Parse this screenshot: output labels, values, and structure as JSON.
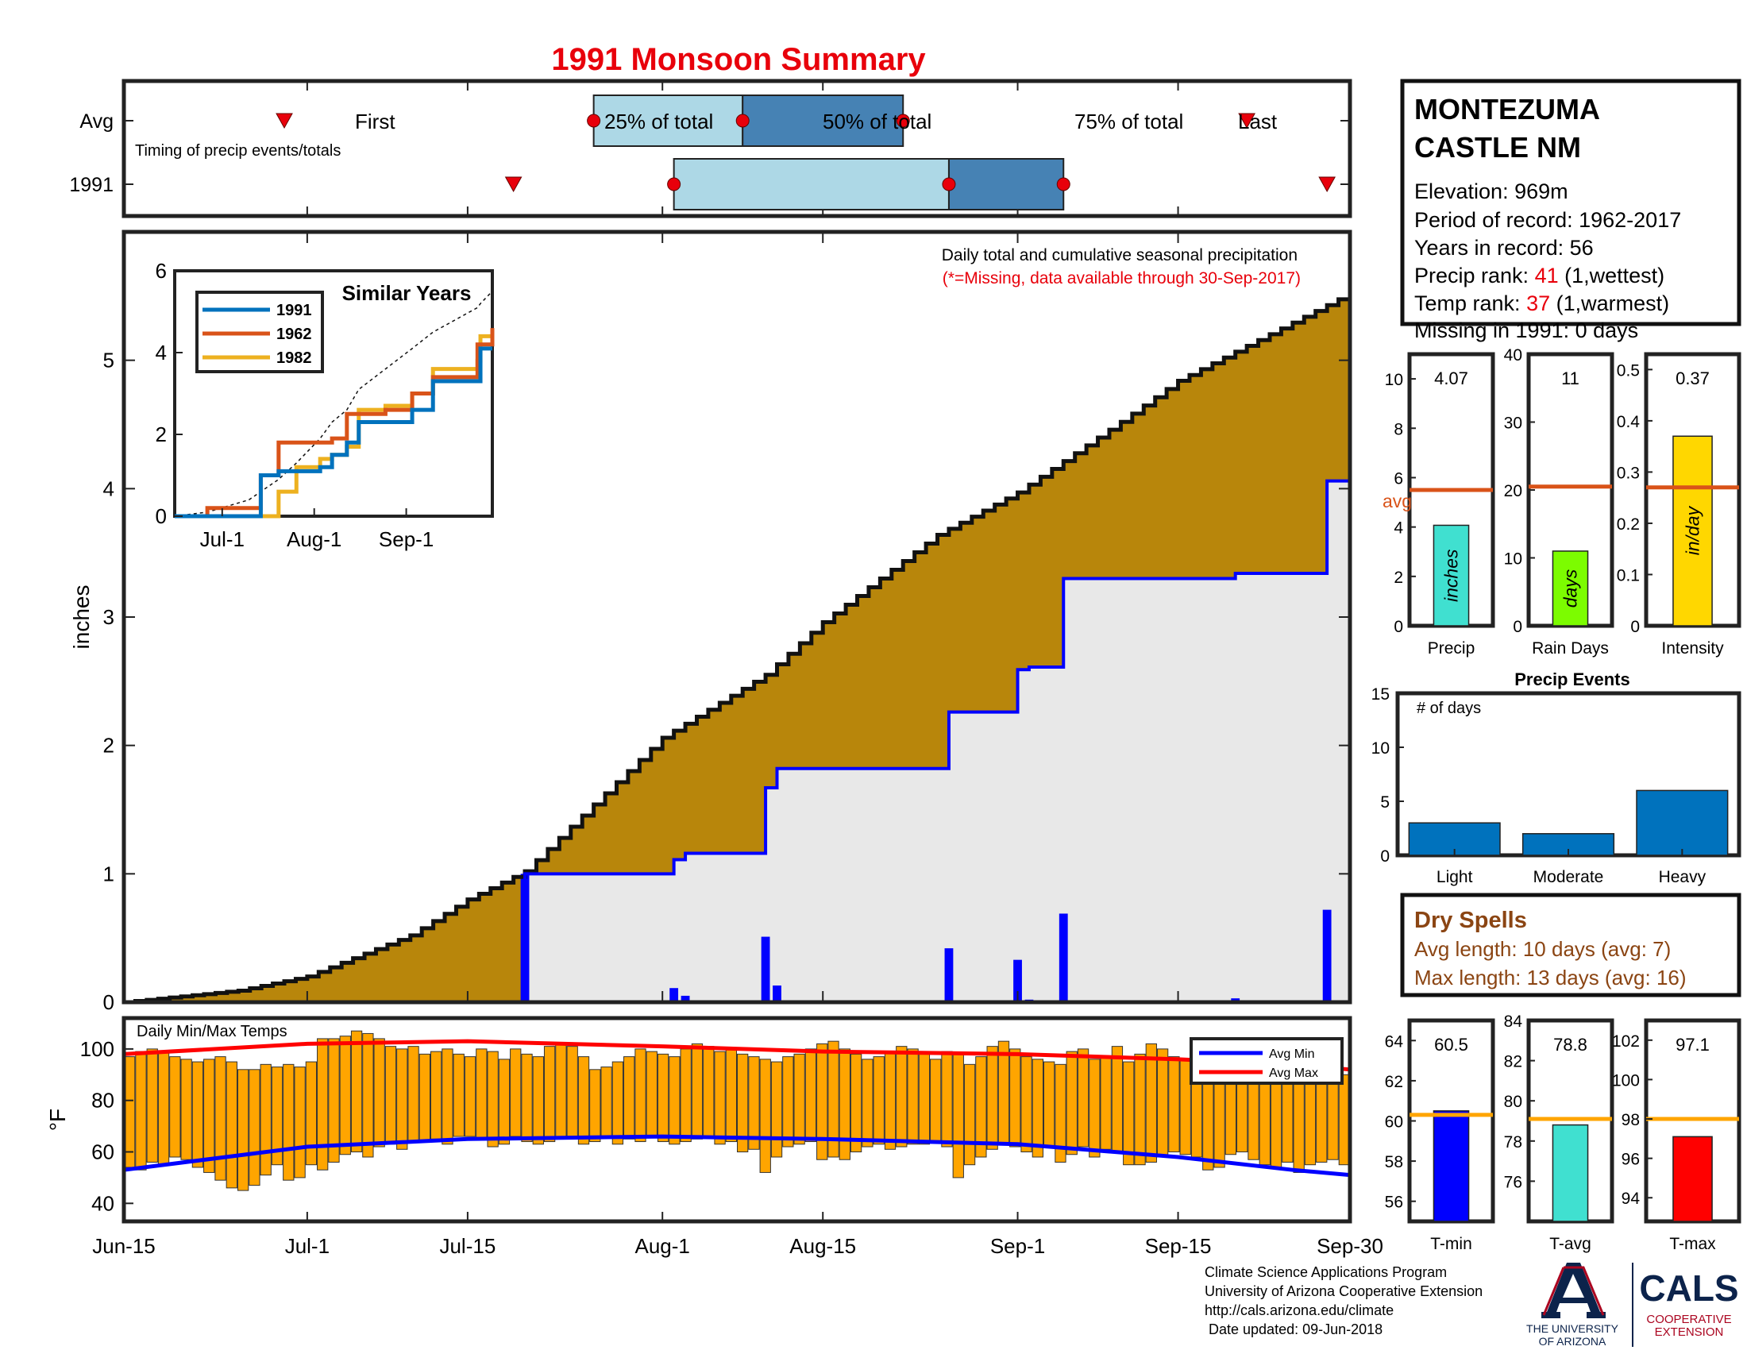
{
  "title": "1991 Monsoon Summary",
  "timing": {
    "row_labels": [
      "Avg",
      "1991"
    ],
    "subtitle": "Timing of precip events/totals",
    "avg_labels": {
      "first": "First",
      "p25": "25% of total",
      "p50": "50% of total",
      "p75": "75% of total",
      "last": "Last"
    },
    "avg": {
      "first": "2017-06-29",
      "p25": "2017-07-26",
      "p50": "2017-08-08",
      "p75": "2017-08-22",
      "last": "2017-09-21"
    },
    "year": {
      "first": "2017-07-19",
      "p25": "2017-08-02",
      "p50": "2017-08-26",
      "p75": "2017-09-05",
      "last": "2017-09-28"
    },
    "colors": {
      "p25_box": "#add8e6",
      "p50_box": "#4682b4",
      "marker": "#e8000b"
    }
  },
  "station": {
    "name_line1": "MONTEZUMA",
    "name_line2": "CASTLE NM",
    "elevation": "Elevation: 969m",
    "period": "Period of record: 1962-2017",
    "years": "Years in record: 56",
    "precip_rank_label": "Precip rank: ",
    "precip_rank_value": "41",
    "precip_rank_note": " (1,wettest)",
    "temp_rank_label": "Temp rank: ",
    "temp_rank_value": "37",
    "temp_rank_note": " (1,warmest)",
    "missing": "Missing in 1991: 0 days",
    "rank_color": "#e8000b"
  },
  "main_plot": {
    "note1": "Daily total and cumulative seasonal precipitation",
    "note2": "(*=Missing, data available through 30-Sep-2017)",
    "ylabel": "inches",
    "yticks": [
      0,
      1,
      2,
      3,
      4,
      5
    ],
    "xticks": [
      "Jun-15",
      "Jul-1",
      "Jul-15",
      "Aug-1",
      "Aug-15",
      "Sep-1",
      "Sep-15",
      "Sep-30"
    ]
  },
  "inset": {
    "title": "Similar Years",
    "xticks": [
      "Jul-1",
      "Aug-1",
      "Sep-1"
    ],
    "yticks": [
      0,
      2,
      4,
      6
    ],
    "series_names": [
      "1991",
      "1962",
      "1982"
    ],
    "series_colors": [
      "#0072bd",
      "#d95319",
      "#edb120"
    ]
  },
  "temp_plot": {
    "title": "Daily Min/Max Temps",
    "ylabel": "°F",
    "yticks": [
      40,
      60,
      80,
      100
    ],
    "legend": [
      "Avg Min",
      "Avg Max"
    ]
  },
  "stats": {
    "precip": {
      "label": "Precip",
      "value_text": "4.07",
      "unit": "inches",
      "avg_label": "avg",
      "yticks": [
        0,
        2,
        4,
        6,
        8,
        10
      ]
    },
    "rain_days": {
      "label": "Rain Days",
      "value_text": "11",
      "unit": "days",
      "yticks": [
        0,
        10,
        20,
        30,
        40
      ]
    },
    "intensity": {
      "label": "Intensity",
      "value_text": "0.37",
      "unit": "in/day",
      "yticks": [
        0,
        0.1,
        0.2,
        0.3,
        0.4,
        0.5
      ]
    }
  },
  "events": {
    "title": "Precip Events",
    "ylabel": "# of days",
    "yticks": [
      0,
      5,
      10,
      15
    ]
  },
  "dry_spells": {
    "title": "Dry Spells",
    "avg_length": "Avg length: 10 days (avg: 7)",
    "max_length": "Max length: 13 days (avg: 16)",
    "color": "#8b4513"
  },
  "temp_stats": {
    "tmin": {
      "label": "T-min",
      "value_text": "60.5",
      "yticks": [
        56,
        58,
        60,
        62,
        64
      ]
    },
    "tavg": {
      "label": "T-avg",
      "value_text": "78.8",
      "yticks": [
        76,
        78,
        80,
        82,
        84
      ]
    },
    "tmax": {
      "label": "T-max",
      "value_text": "97.1",
      "yticks": [
        94,
        96,
        98,
        100,
        102
      ]
    }
  },
  "footer": {
    "line1": "Climate Science Applications Program",
    "line2": "University of Arizona Cooperative Extension",
    "line3": "http://cals.arizona.edu/climate",
    "line4": " Date updated: 09-Jun-2018",
    "logo_ua_line1": "THE UNIVERSITY",
    "logo_ua_line2": "OF ARIZONA",
    "logo_cals": "CALS",
    "logo_coop1": "COOPERATIVE",
    "logo_coop2": "EXTENSION"
  },
  "chart_data": [
    {
      "name": "cumulative_precipitation",
      "type": "area",
      "x_dates": [
        "2017-06-15",
        "2017-06-25",
        "2017-07-01",
        "2017-07-10",
        "2017-07-15",
        "2017-07-20",
        "2017-08-01",
        "2017-08-10",
        "2017-08-15",
        "2017-08-25",
        "2017-09-01",
        "2017-09-10",
        "2017-09-15",
        "2017-09-30"
      ],
      "avg_cumulative_in": [
        0.0,
        0.09,
        0.2,
        0.52,
        0.8,
        1.02,
        2.06,
        2.55,
        2.96,
        3.64,
        3.97,
        4.52,
        4.84,
        5.52
      ],
      "year_cumulative_steps": [
        {
          "date": "2017-06-15",
          "value": 0.0
        },
        {
          "date": "2017-07-20",
          "value": 1.0
        },
        {
          "date": "2017-08-02",
          "value": 1.11
        },
        {
          "date": "2017-08-03",
          "value": 1.16
        },
        {
          "date": "2017-08-10",
          "value": 1.67
        },
        {
          "date": "2017-08-11",
          "value": 1.82
        },
        {
          "date": "2017-08-26",
          "value": 2.26
        },
        {
          "date": "2017-09-01",
          "value": 2.59
        },
        {
          "date": "2017-09-02",
          "value": 2.61
        },
        {
          "date": "2017-09-05",
          "value": 3.3
        },
        {
          "date": "2017-09-20",
          "value": 3.34
        },
        {
          "date": "2017-09-28",
          "value": 4.06
        }
      ],
      "daily_precip": [
        {
          "date": "2017-07-20",
          "value": 1.0
        },
        {
          "date": "2017-08-02",
          "value": 0.11
        },
        {
          "date": "2017-08-03",
          "value": 0.05
        },
        {
          "date": "2017-08-10",
          "value": 0.51
        },
        {
          "date": "2017-08-11",
          "value": 0.13
        },
        {
          "date": "2017-08-26",
          "value": 0.42
        },
        {
          "date": "2017-09-01",
          "value": 0.33
        },
        {
          "date": "2017-09-02",
          "value": 0.02
        },
        {
          "date": "2017-09-05",
          "value": 0.69
        },
        {
          "date": "2017-09-20",
          "value": 0.03
        },
        {
          "date": "2017-09-28",
          "value": 0.72
        }
      ],
      "ylim": [
        0,
        6
      ],
      "colors": {
        "avg_fill": "#b8860b",
        "year_fill": "#e8e8e8",
        "year_line": "#0000ff",
        "daily_bar": "#0000ff"
      }
    },
    {
      "name": "similar_years",
      "type": "line",
      "x_dates": [
        "2017-06-15",
        "2017-06-26",
        "2017-07-10",
        "2017-07-14",
        "2017-07-20",
        "2017-07-26",
        "2017-08-03",
        "2017-08-07",
        "2017-08-12",
        "2017-08-16",
        "2017-08-25",
        "2017-09-03",
        "2017-09-10",
        "2017-09-25",
        "2017-09-26",
        "2017-09-30"
      ],
      "series": [
        {
          "name": "1991",
          "values": [
            0.0,
            0.0,
            0.0,
            1.0,
            1.1,
            1.1,
            1.2,
            1.5,
            1.8,
            2.3,
            2.3,
            2.6,
            3.3,
            3.3,
            4.1,
            4.1
          ]
        },
        {
          "name": "1962",
          "values": [
            0.0,
            0.2,
            0.2,
            1.0,
            1.8,
            1.8,
            1.8,
            1.9,
            2.5,
            2.5,
            2.6,
            3.0,
            3.4,
            4.2,
            4.2,
            4.6
          ]
        },
        {
          "name": "1982",
          "values": [
            0.0,
            0.0,
            0.0,
            0.0,
            0.6,
            1.2,
            1.4,
            1.5,
            1.7,
            2.6,
            2.7,
            3.0,
            3.6,
            3.8,
            4.4,
            4.4
          ]
        }
      ],
      "avg_dashed_values": [
        0.0,
        0.1,
        0.4,
        0.6,
        0.9,
        1.3,
        1.9,
        2.3,
        2.6,
        3.1,
        3.6,
        4.1,
        4.5,
        5.1,
        5.2,
        5.5
      ],
      "ylim": [
        0,
        6
      ]
    },
    {
      "name": "daily_temps",
      "type": "bar",
      "date_range": [
        "2017-06-15",
        "2017-09-30"
      ],
      "tmax_f": [
        97,
        99,
        100,
        99,
        97,
        96,
        95,
        96,
        97,
        95,
        92,
        92,
        94,
        93,
        94,
        93,
        95,
        104,
        104,
        105,
        107,
        106,
        104,
        101,
        100,
        101,
        98,
        99,
        100,
        98,
        97,
        100,
        99,
        96,
        100,
        98,
        97,
        101,
        102,
        101,
        97,
        92,
        93,
        95,
        97,
        100,
        99,
        98,
        97,
        100,
        102,
        101,
        99,
        100,
        98,
        97,
        96,
        95,
        97,
        98,
        100,
        102,
        103,
        100,
        98,
        96,
        97,
        99,
        101,
        100,
        98,
        96,
        99,
        98,
        94,
        97,
        101,
        103,
        100,
        97,
        96,
        95,
        94,
        99,
        100,
        96,
        97,
        101,
        95,
        98,
        102,
        100,
        97,
        96,
        93,
        96,
        99,
        97,
        95,
        94,
        96,
        93,
        94,
        97,
        95,
        92,
        91,
        90
      ],
      "tmin_f": [
        54,
        53,
        56,
        55,
        58,
        57,
        54,
        52,
        49,
        46,
        45,
        47,
        51,
        55,
        49,
        50,
        55,
        53,
        56,
        59,
        60,
        58,
        62,
        63,
        61,
        64,
        64,
        65,
        63,
        66,
        66,
        65,
        62,
        63,
        66,
        64,
        63,
        64,
        65,
        66,
        63,
        64,
        66,
        63,
        65,
        64,
        66,
        64,
        63,
        64,
        65,
        66,
        63,
        64,
        60,
        61,
        52,
        58,
        62,
        63,
        64,
        57,
        58,
        57,
        60,
        62,
        63,
        61,
        62,
        63,
        63,
        64,
        62,
        50,
        55,
        58,
        61,
        63,
        62,
        60,
        58,
        62,
        56,
        59,
        62,
        58,
        61,
        60,
        55,
        55,
        56,
        58,
        60,
        59,
        58,
        53,
        54,
        59,
        60,
        57,
        55,
        54,
        56,
        52,
        55,
        56,
        57,
        55
      ],
      "avg_min_f": [
        53,
        62,
        65,
        66,
        65,
        63,
        58,
        53,
        51
      ],
      "avg_max_f": [
        98,
        102,
        103,
        101,
        99,
        98,
        96,
        94,
        92
      ],
      "avg_dates": [
        "2017-06-15",
        "2017-07-01",
        "2017-07-15",
        "2017-08-01",
        "2017-08-15",
        "2017-09-01",
        "2017-09-15",
        "2017-09-25",
        "2017-09-30"
      ],
      "ylim": [
        33,
        112
      ],
      "colors": {
        "bar": "#ffa500",
        "avg_min": "#0000ff",
        "avg_max": "#ff0000"
      }
    },
    {
      "name": "season_stats",
      "type": "bar",
      "categories": [
        "Precip",
        "Rain Days",
        "Intensity"
      ],
      "values": [
        4.07,
        11,
        0.37
      ],
      "averages": [
        5.5,
        20.5,
        0.27
      ],
      "ylims": [
        [
          0,
          11
        ],
        [
          0,
          40
        ],
        [
          0,
          0.53
        ]
      ],
      "colors": [
        "#40e0d0",
        "#7cfc00",
        "#ffd700"
      ],
      "avg_color": "#d95319"
    },
    {
      "name": "precip_events",
      "type": "bar",
      "categories": [
        "Light",
        "Moderate",
        "Heavy"
      ],
      "values": [
        3,
        2,
        6
      ],
      "ylim": [
        0,
        15
      ],
      "color": "#0072bd"
    },
    {
      "name": "temperature_stats",
      "type": "bar",
      "categories": [
        "T-min",
        "T-avg",
        "T-max"
      ],
      "values": [
        60.5,
        78.8,
        97.1
      ],
      "averages": [
        60.3,
        79.1,
        98.0
      ],
      "ylims": [
        [
          55,
          65
        ],
        [
          74,
          84
        ],
        [
          92.8,
          103
        ]
      ],
      "colors": [
        "#0000ff",
        "#40e0d0",
        "#ff0000"
      ],
      "avg_color": "#ffa500"
    }
  ]
}
